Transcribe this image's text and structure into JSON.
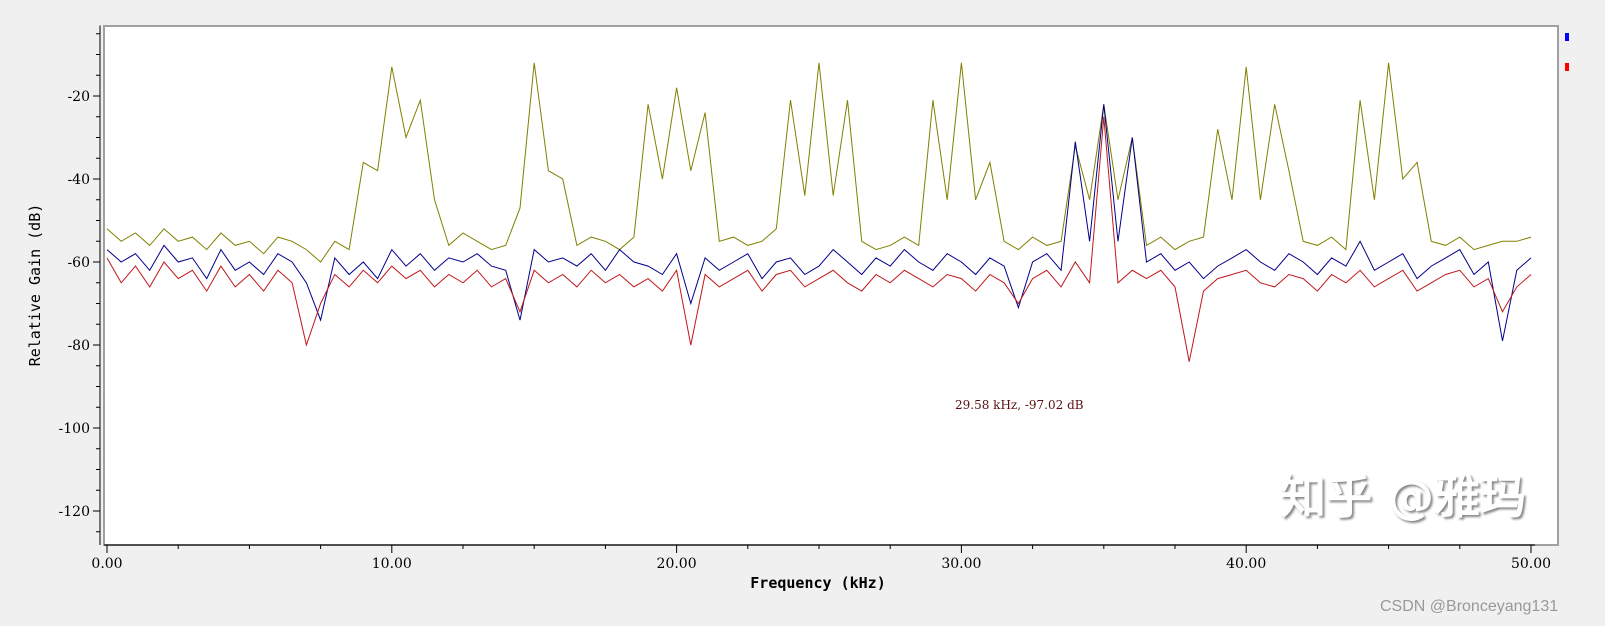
{
  "chart_data": {
    "type": "line",
    "xlabel": "Frequency (kHz)",
    "ylabel": "Relative Gain (dB)",
    "xlim": [
      0,
      50
    ],
    "ylim": [
      -128,
      -3
    ],
    "xticks": [
      0,
      10,
      20,
      30,
      40,
      50
    ],
    "xtick_labels": [
      "0.00",
      "10.00",
      "20.00",
      "30.00",
      "40.00",
      "50.00"
    ],
    "yticks": [
      -20,
      -40,
      -60,
      -80,
      -100,
      -120
    ],
    "ytick_labels": [
      "-20",
      "-40",
      "-60",
      "-80",
      "-100",
      "-120"
    ],
    "grid": false,
    "legend": "top-right",
    "x_step": 0.5,
    "series": [
      {
        "color": "#808000",
        "values": [
          -52,
          -55,
          -53,
          -56,
          -52,
          -55,
          -54,
          -57,
          -53,
          -56,
          -55,
          -58,
          -54,
          -55,
          -57,
          -60,
          -55,
          -57,
          -36,
          -38,
          -13,
          -30,
          -21,
          -45,
          -56,
          -53,
          -55,
          -57,
          -56,
          -47,
          -12,
          -38,
          -40,
          -56,
          -54,
          -55,
          -57,
          -54,
          -22,
          -40,
          -18,
          -38,
          -24,
          -55,
          -54,
          -56,
          -55,
          -52,
          -21,
          -44,
          -12,
          -44,
          -21,
          -55,
          -57,
          -56,
          -54,
          -56,
          -21,
          -45,
          -12,
          -45,
          -36,
          -55,
          -57,
          -54,
          -56,
          -55,
          -32,
          -45,
          -22,
          -45,
          -30,
          -56,
          -54,
          -57,
          -55,
          -54,
          -28,
          -45,
          -13,
          -45,
          -22,
          -38,
          -55,
          -56,
          -54,
          -57,
          -21,
          -45,
          -12,
          -40,
          -36,
          -55,
          -56,
          -54,
          -57,
          -56,
          -55,
          -55,
          -54
        ]
      },
      {
        "color": "#00008b",
        "values": [
          -57,
          -60,
          -58,
          -62,
          -56,
          -60,
          -59,
          -64,
          -57,
          -62,
          -60,
          -63,
          -58,
          -60,
          -65,
          -74,
          -59,
          -63,
          -60,
          -64,
          -57,
          -61,
          -58,
          -62,
          -59,
          -60,
          -58,
          -61,
          -62,
          -74,
          -57,
          -60,
          -59,
          -61,
          -58,
          -62,
          -57,
          -60,
          -61,
          -63,
          -58,
          -70,
          -59,
          -62,
          -60,
          -58,
          -64,
          -60,
          -59,
          -63,
          -61,
          -57,
          -60,
          -63,
          -59,
          -61,
          -57,
          -60,
          -62,
          -58,
          -60,
          -63,
          -59,
          -61,
          -71,
          -60,
          -58,
          -62,
          -31,
          -55,
          -22,
          -55,
          -30,
          -60,
          -58,
          -62,
          -60,
          -64,
          -61,
          -59,
          -57,
          -60,
          -62,
          -58,
          -60,
          -63,
          -59,
          -61,
          -55,
          -62,
          -60,
          -58,
          -64,
          -61,
          -59,
          -57,
          -63,
          -60,
          -79,
          -62,
          -59
        ]
      },
      {
        "color": "#c0181b",
        "values": [
          -59,
          -65,
          -61,
          -66,
          -60,
          -64,
          -62,
          -67,
          -61,
          -66,
          -63,
          -67,
          -62,
          -65,
          -80,
          -70,
          -63,
          -66,
          -62,
          -65,
          -61,
          -64,
          -62,
          -66,
          -63,
          -65,
          -62,
          -66,
          -64,
          -72,
          -62,
          -65,
          -63,
          -66,
          -62,
          -65,
          -63,
          -66,
          -64,
          -67,
          -62,
          -80,
          -63,
          -66,
          -64,
          -62,
          -67,
          -63,
          -62,
          -66,
          -64,
          -62,
          -65,
          -67,
          -63,
          -65,
          -62,
          -64,
          -66,
          -63,
          -64,
          -67,
          -63,
          -65,
          -70,
          -64,
          -62,
          -66,
          -60,
          -65,
          -25,
          -65,
          -62,
          -64,
          -62,
          -66,
          -84,
          -67,
          -64,
          -63,
          -62,
          -65,
          -66,
          -63,
          -64,
          -67,
          -63,
          -65,
          -62,
          -66,
          -64,
          -62,
          -67,
          -65,
          -63,
          -62,
          -66,
          -64,
          -72,
          -66,
          -63
        ]
      }
    ],
    "annotations": [
      "29.58 kHz, -97.02 dB"
    ]
  },
  "watermarks": {
    "zhihu": "知乎 @雅玛",
    "csdn": "CSDN @Bronceyang131"
  }
}
